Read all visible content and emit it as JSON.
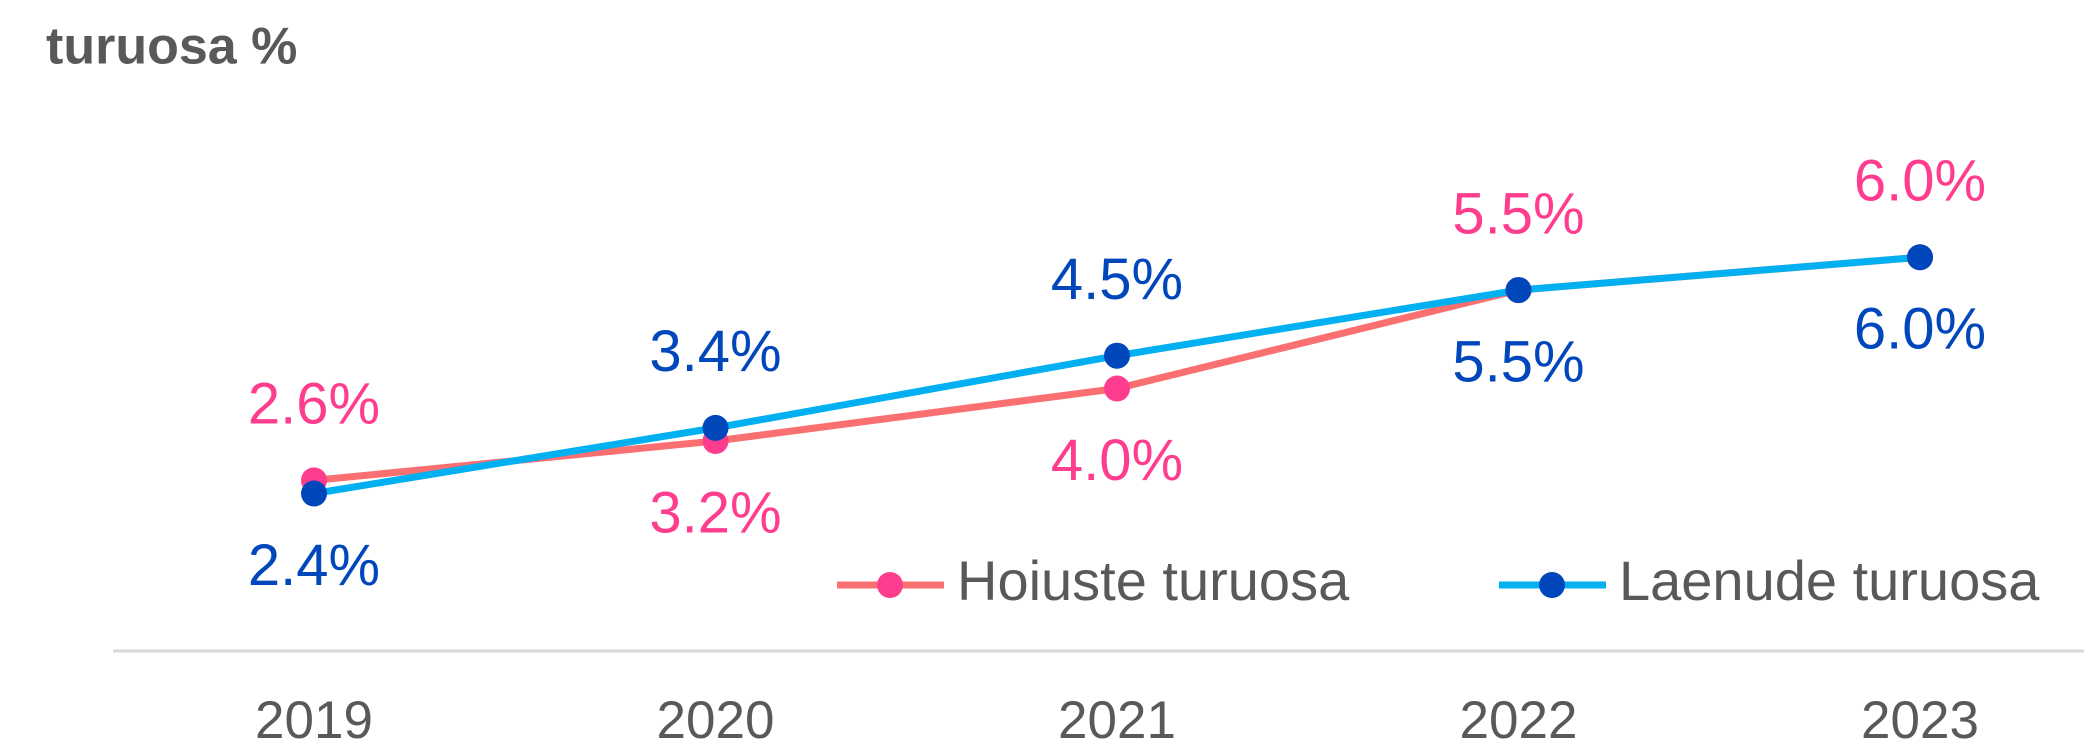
{
  "chart_data": {
    "type": "line",
    "title": "turuosa %",
    "categories": [
      "2019",
      "2020",
      "2021",
      "2022",
      "2023"
    ],
    "series": [
      {
        "name": "Hoiuste turuosa",
        "color": "#fa7070",
        "marker_color": "#ff3d8f",
        "values": [
          2.6,
          3.2,
          4.0,
          5.5,
          6.0
        ],
        "value_labels": [
          "2.6%",
          "3.2%",
          "4.0%",
          "5.5%",
          "6.0%"
        ]
      },
      {
        "name": "Laenude turuosa",
        "color": "#00b0f0",
        "marker_color": "#0047bb",
        "values": [
          2.4,
          3.4,
          4.5,
          5.5,
          6.0
        ],
        "value_labels": [
          "2.4%",
          "3.4%",
          "4.5%",
          "5.5%",
          "6.0%"
        ]
      }
    ],
    "ylim": [
      0,
      8
    ],
    "legend": "bottom-right"
  }
}
